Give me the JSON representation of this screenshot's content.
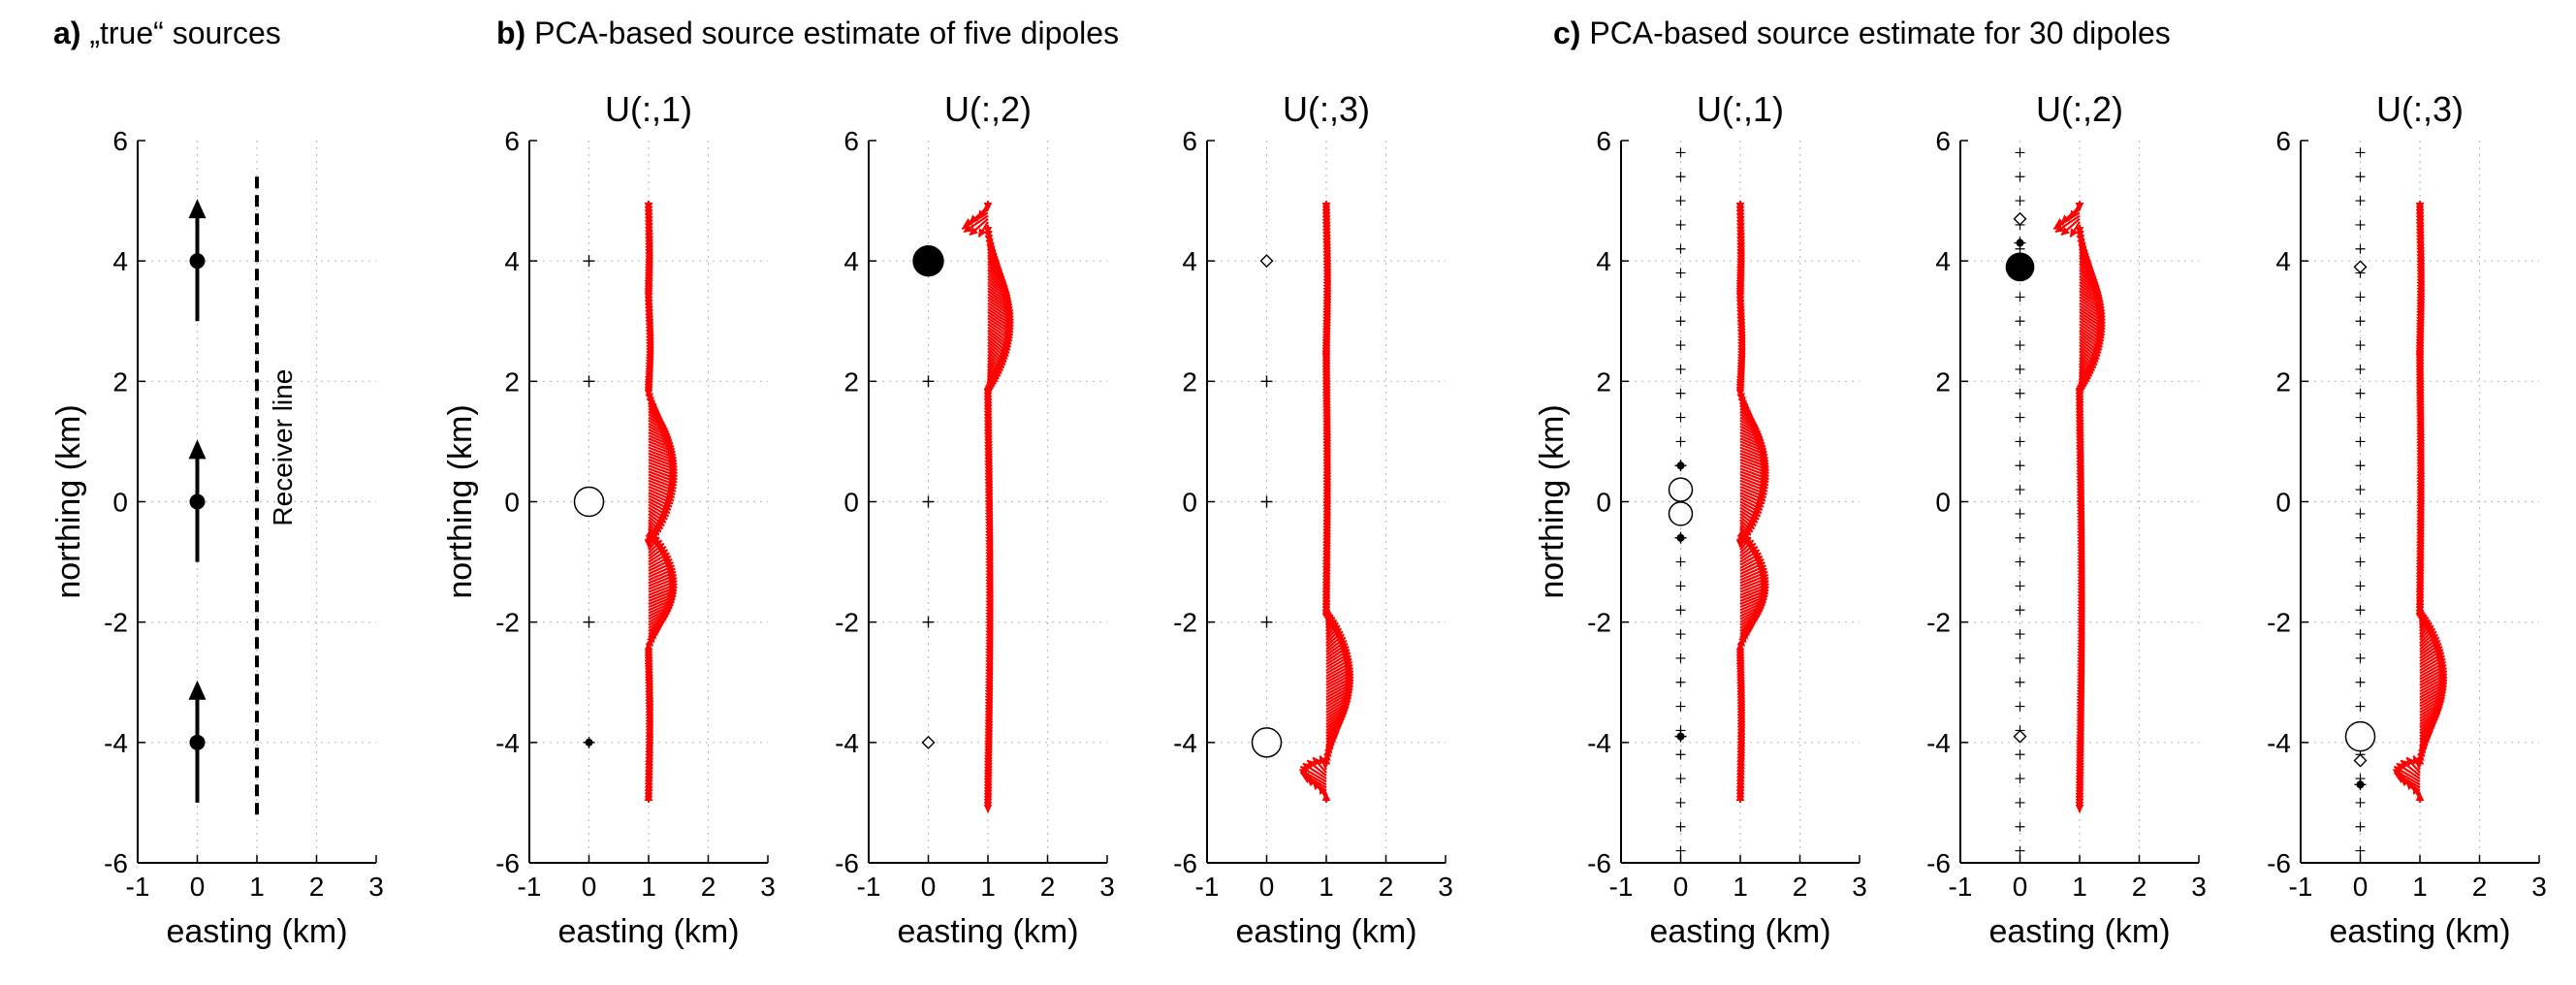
{
  "panel_headers": [
    {
      "letter": "a)",
      "text": " „true“ sources"
    },
    {
      "letter": "b)",
      "text": " PCA-based source estimate of five dipoles"
    },
    {
      "letter": "c)",
      "text": " PCA-based source estimate for 30 dipoles"
    }
  ],
  "colors": {
    "arrows": "#ff0000",
    "markers": "#000000",
    "grid": "#bdbdbd"
  },
  "chart_data": [
    {
      "type": "scatter",
      "id": "a",
      "title": "",
      "xlabel": "easting (km)",
      "ylabel": "northing (km)",
      "xlim": [
        -1,
        3
      ],
      "ylim": [
        -6,
        6
      ],
      "xticks": [
        -1,
        0,
        1,
        2,
        3
      ],
      "yticks": [
        -6,
        -4,
        -2,
        0,
        2,
        4,
        6
      ],
      "grid": true,
      "sources": [
        {
          "x": 0,
          "y": 4,
          "dir": "north",
          "length": 2
        },
        {
          "x": 0,
          "y": 0,
          "dir": "north",
          "length": 2
        },
        {
          "x": 0,
          "y": -4,
          "dir": "north",
          "length": 2
        }
      ],
      "receiver_line": {
        "x": 1,
        "y_from": -5.3,
        "y_to": 5.4,
        "label": "Receiver line"
      }
    },
    {
      "type": "scatter",
      "id": "b1",
      "title": "U(:,1)",
      "xlabel": "easting (km)",
      "ylabel": "northing (km)",
      "xlim": [
        -1,
        3
      ],
      "ylim": [
        -6,
        6
      ],
      "xticks": [
        -1,
        0,
        1,
        2,
        3
      ],
      "yticks": [
        -6,
        -4,
        -2,
        0,
        2,
        4,
        6
      ],
      "grid": true,
      "markers": [
        {
          "x": 0,
          "y": 4,
          "kind": "plus"
        },
        {
          "x": 0,
          "y": 2,
          "kind": "plus"
        },
        {
          "x": 0,
          "y": 0,
          "kind": "circle_open",
          "size": 10
        },
        {
          "x": 0,
          "y": -2,
          "kind": "plus"
        },
        {
          "x": 0,
          "y": -4,
          "kind": "dot"
        }
      ],
      "receiver_x": 1,
      "receiver_y": [
        -5,
        5
      ],
      "arrows": [
        {
          "y0": 5.0,
          "y1": 3.5,
          "amp": 0.07,
          "dx": 0.05,
          "dy": -0.5
        },
        {
          "y0": 3.5,
          "y1": 1.9,
          "amp": 0.06,
          "dx": 0.12,
          "dy": -0.5
        },
        {
          "y0": 1.9,
          "y1": -0.6,
          "amp": 0.35,
          "dx": 0.95,
          "dy": -0.35
        },
        {
          "y0": -0.6,
          "y1": -2.5,
          "amp": 0.35,
          "dx": 0.9,
          "dy": 0.35
        },
        {
          "y0": -2.5,
          "y1": -5.0,
          "amp": 0.06,
          "dx": 0.1,
          "dy": 0.6
        }
      ]
    },
    {
      "type": "scatter",
      "id": "b2",
      "title": "U(:,2)",
      "xlabel": "easting (km)",
      "ylabel": "",
      "xlim": [
        -1,
        3
      ],
      "ylim": [
        -6,
        6
      ],
      "xticks": [
        -1,
        0,
        1,
        2,
        3
      ],
      "yticks": [
        -6,
        -4,
        -2,
        0,
        2,
        4,
        6
      ],
      "grid": true,
      "markers": [
        {
          "x": 0,
          "y": 4,
          "kind": "circle_filled",
          "size": 12
        },
        {
          "x": 0,
          "y": 2,
          "kind": "plus"
        },
        {
          "x": 0,
          "y": 0,
          "kind": "plus"
        },
        {
          "x": 0,
          "y": -2,
          "kind": "plus"
        },
        {
          "x": 0,
          "y": -4,
          "kind": "diamond_open"
        }
      ],
      "receiver_x": 1,
      "receiver_y": [
        -5,
        5
      ],
      "arrows": [
        {
          "y0": 5.0,
          "y1": 4.6,
          "amp": 0.35,
          "dx": -0.8,
          "dy": -0.5
        },
        {
          "y0": 4.6,
          "y1": 1.9,
          "amp": 0.35,
          "dx": 0.75,
          "dy": -0.5
        },
        {
          "y0": 1.9,
          "y1": -5.0,
          "amp": 0.05,
          "dx": 0.2,
          "dy": -0.6
        }
      ]
    },
    {
      "type": "scatter",
      "id": "b3",
      "title": "U(:,3)",
      "xlabel": "easting (km)",
      "ylabel": "",
      "xlim": [
        -1,
        3
      ],
      "ylim": [
        -6,
        6
      ],
      "xticks": [
        -1,
        0,
        1,
        2,
        3
      ],
      "yticks": [
        -6,
        -4,
        -2,
        0,
        2,
        4,
        6
      ],
      "grid": true,
      "markers": [
        {
          "x": 0,
          "y": 4,
          "kind": "diamond_open"
        },
        {
          "x": 0,
          "y": 2,
          "kind": "plus"
        },
        {
          "x": 0,
          "y": 0,
          "kind": "plus"
        },
        {
          "x": 0,
          "y": -2,
          "kind": "plus"
        },
        {
          "x": 0,
          "y": -4,
          "kind": "circle_open",
          "size": 10
        }
      ],
      "receiver_x": 1,
      "receiver_y": [
        -5,
        5
      ],
      "arrows": [
        {
          "y0": 5.0,
          "y1": 2.5,
          "amp": 0.06,
          "dx": 0.1,
          "dy": -0.6
        },
        {
          "y0": 2.5,
          "y1": -1.9,
          "amp": 0.04,
          "dx": 0.1,
          "dy": 0.6
        },
        {
          "y0": -1.9,
          "y1": -4.4,
          "amp": 0.35,
          "dx": 0.85,
          "dy": 0.45
        },
        {
          "y0": -4.4,
          "y1": -5.0,
          "amp": 0.35,
          "dx": -0.8,
          "dy": 0.45
        }
      ]
    },
    {
      "type": "scatter",
      "id": "c1",
      "title": "U(:,1)",
      "xlabel": "easting (km)",
      "ylabel": "northing (km)",
      "xlim": [
        -1,
        3
      ],
      "ylim": [
        -6,
        6
      ],
      "xticks": [
        -1,
        0,
        1,
        2,
        3
      ],
      "yticks": [
        -6,
        -4,
        -2,
        0,
        2,
        4,
        6
      ],
      "grid": true,
      "plus_column": {
        "x": 0,
        "y_from": -5.8,
        "y_to": 5.8,
        "step": 0.4
      },
      "markers": [
        {
          "x": 0,
          "y": 0.2,
          "kind": "circle_open",
          "size": 8
        },
        {
          "x": 0,
          "y": -0.2,
          "kind": "circle_open",
          "size": 8
        },
        {
          "x": 0,
          "y": 0.6,
          "kind": "dot"
        },
        {
          "x": 0,
          "y": -0.6,
          "kind": "dot"
        },
        {
          "x": 0,
          "y": -3.9,
          "kind": "dot"
        }
      ],
      "receiver_x": 1,
      "receiver_y": [
        -5,
        5
      ],
      "arrows": [
        {
          "y0": 5.0,
          "y1": 3.5,
          "amp": 0.07,
          "dx": 0.05,
          "dy": -0.5
        },
        {
          "y0": 3.5,
          "y1": 1.9,
          "amp": 0.06,
          "dx": 0.12,
          "dy": -0.5
        },
        {
          "y0": 1.9,
          "y1": -0.6,
          "amp": 0.35,
          "dx": 0.95,
          "dy": -0.35
        },
        {
          "y0": -0.6,
          "y1": -2.5,
          "amp": 0.35,
          "dx": 0.9,
          "dy": 0.35
        },
        {
          "y0": -2.5,
          "y1": -5.0,
          "amp": 0.06,
          "dx": 0.1,
          "dy": 0.6
        }
      ]
    },
    {
      "type": "scatter",
      "id": "c2",
      "title": "U(:,2)",
      "xlabel": "easting (km)",
      "ylabel": "",
      "xlim": [
        -1,
        3
      ],
      "ylim": [
        -6,
        6
      ],
      "xticks": [
        -1,
        0,
        1,
        2,
        3
      ],
      "yticks": [
        -6,
        -4,
        -2,
        0,
        2,
        4,
        6
      ],
      "grid": true,
      "plus_column": {
        "x": 0,
        "y_from": -5.8,
        "y_to": 5.8,
        "step": 0.4
      },
      "markers": [
        {
          "x": 0,
          "y": 3.9,
          "kind": "circle_filled",
          "size": 11
        },
        {
          "x": 0,
          "y": 4.3,
          "kind": "dot"
        },
        {
          "x": 0,
          "y": 4.7,
          "kind": "diamond_open"
        },
        {
          "x": 0,
          "y": -3.9,
          "kind": "diamond_open"
        }
      ],
      "receiver_x": 1,
      "receiver_y": [
        -5,
        5
      ],
      "arrows": [
        {
          "y0": 5.0,
          "y1": 4.6,
          "amp": 0.35,
          "dx": -0.8,
          "dy": -0.5
        },
        {
          "y0": 4.6,
          "y1": 1.9,
          "amp": 0.35,
          "dx": 0.75,
          "dy": -0.5
        },
        {
          "y0": 1.9,
          "y1": -5.0,
          "amp": 0.05,
          "dx": 0.2,
          "dy": -0.6
        }
      ]
    },
    {
      "type": "scatter",
      "id": "c3",
      "title": "U(:,3)",
      "xlabel": "easting (km)",
      "ylabel": "",
      "xlim": [
        -1,
        3
      ],
      "ylim": [
        -6,
        6
      ],
      "xticks": [
        -1,
        0,
        1,
        2,
        3
      ],
      "yticks": [
        -6,
        -4,
        -2,
        0,
        2,
        4,
        6
      ],
      "grid": true,
      "plus_column": {
        "x": 0,
        "y_from": -5.8,
        "y_to": 5.8,
        "step": 0.4
      },
      "markers": [
        {
          "x": 0,
          "y": 3.9,
          "kind": "diamond_open"
        },
        {
          "x": 0,
          "y": -3.9,
          "kind": "circle_open",
          "size": 10
        },
        {
          "x": 0,
          "y": -4.3,
          "kind": "diamond_open"
        },
        {
          "x": 0,
          "y": -4.7,
          "kind": "dot"
        }
      ],
      "receiver_x": 1,
      "receiver_y": [
        -5,
        5
      ],
      "arrows": [
        {
          "y0": 5.0,
          "y1": 2.5,
          "amp": 0.06,
          "dx": 0.1,
          "dy": -0.6
        },
        {
          "y0": 2.5,
          "y1": -1.9,
          "amp": 0.04,
          "dx": 0.1,
          "dy": 0.6
        },
        {
          "y0": -1.9,
          "y1": -4.4,
          "amp": 0.35,
          "dx": 0.85,
          "dy": 0.45
        },
        {
          "y0": -4.4,
          "y1": -5.0,
          "amp": 0.35,
          "dx": -0.8,
          "dy": 0.45
        }
      ]
    }
  ]
}
